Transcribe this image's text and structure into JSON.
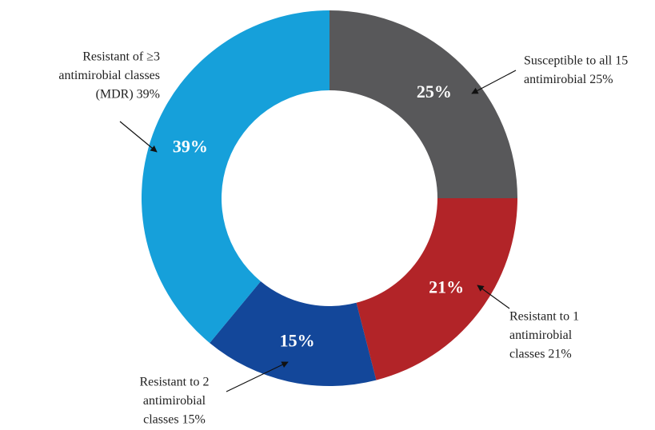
{
  "chart_data": {
    "type": "donut",
    "categories": [
      [
        "Susceptible to all 15",
        "antimirobial 25%"
      ],
      [
        "Resistant to 1",
        "antimirobial",
        "classes 21%"
      ],
      [
        "Resistant to 2",
        "antimirobial",
        "classes 15%"
      ],
      [
        "Resistant of ≥3",
        "antimirobial classes",
        "(MDR) 39%"
      ]
    ],
    "values": [
      25,
      21,
      15,
      39
    ],
    "value_labels": [
      "25%",
      "21%",
      "15%",
      "39%"
    ],
    "colors": [
      "#58585a",
      "#b22428",
      "#13479a",
      "#16a0da"
    ]
  }
}
